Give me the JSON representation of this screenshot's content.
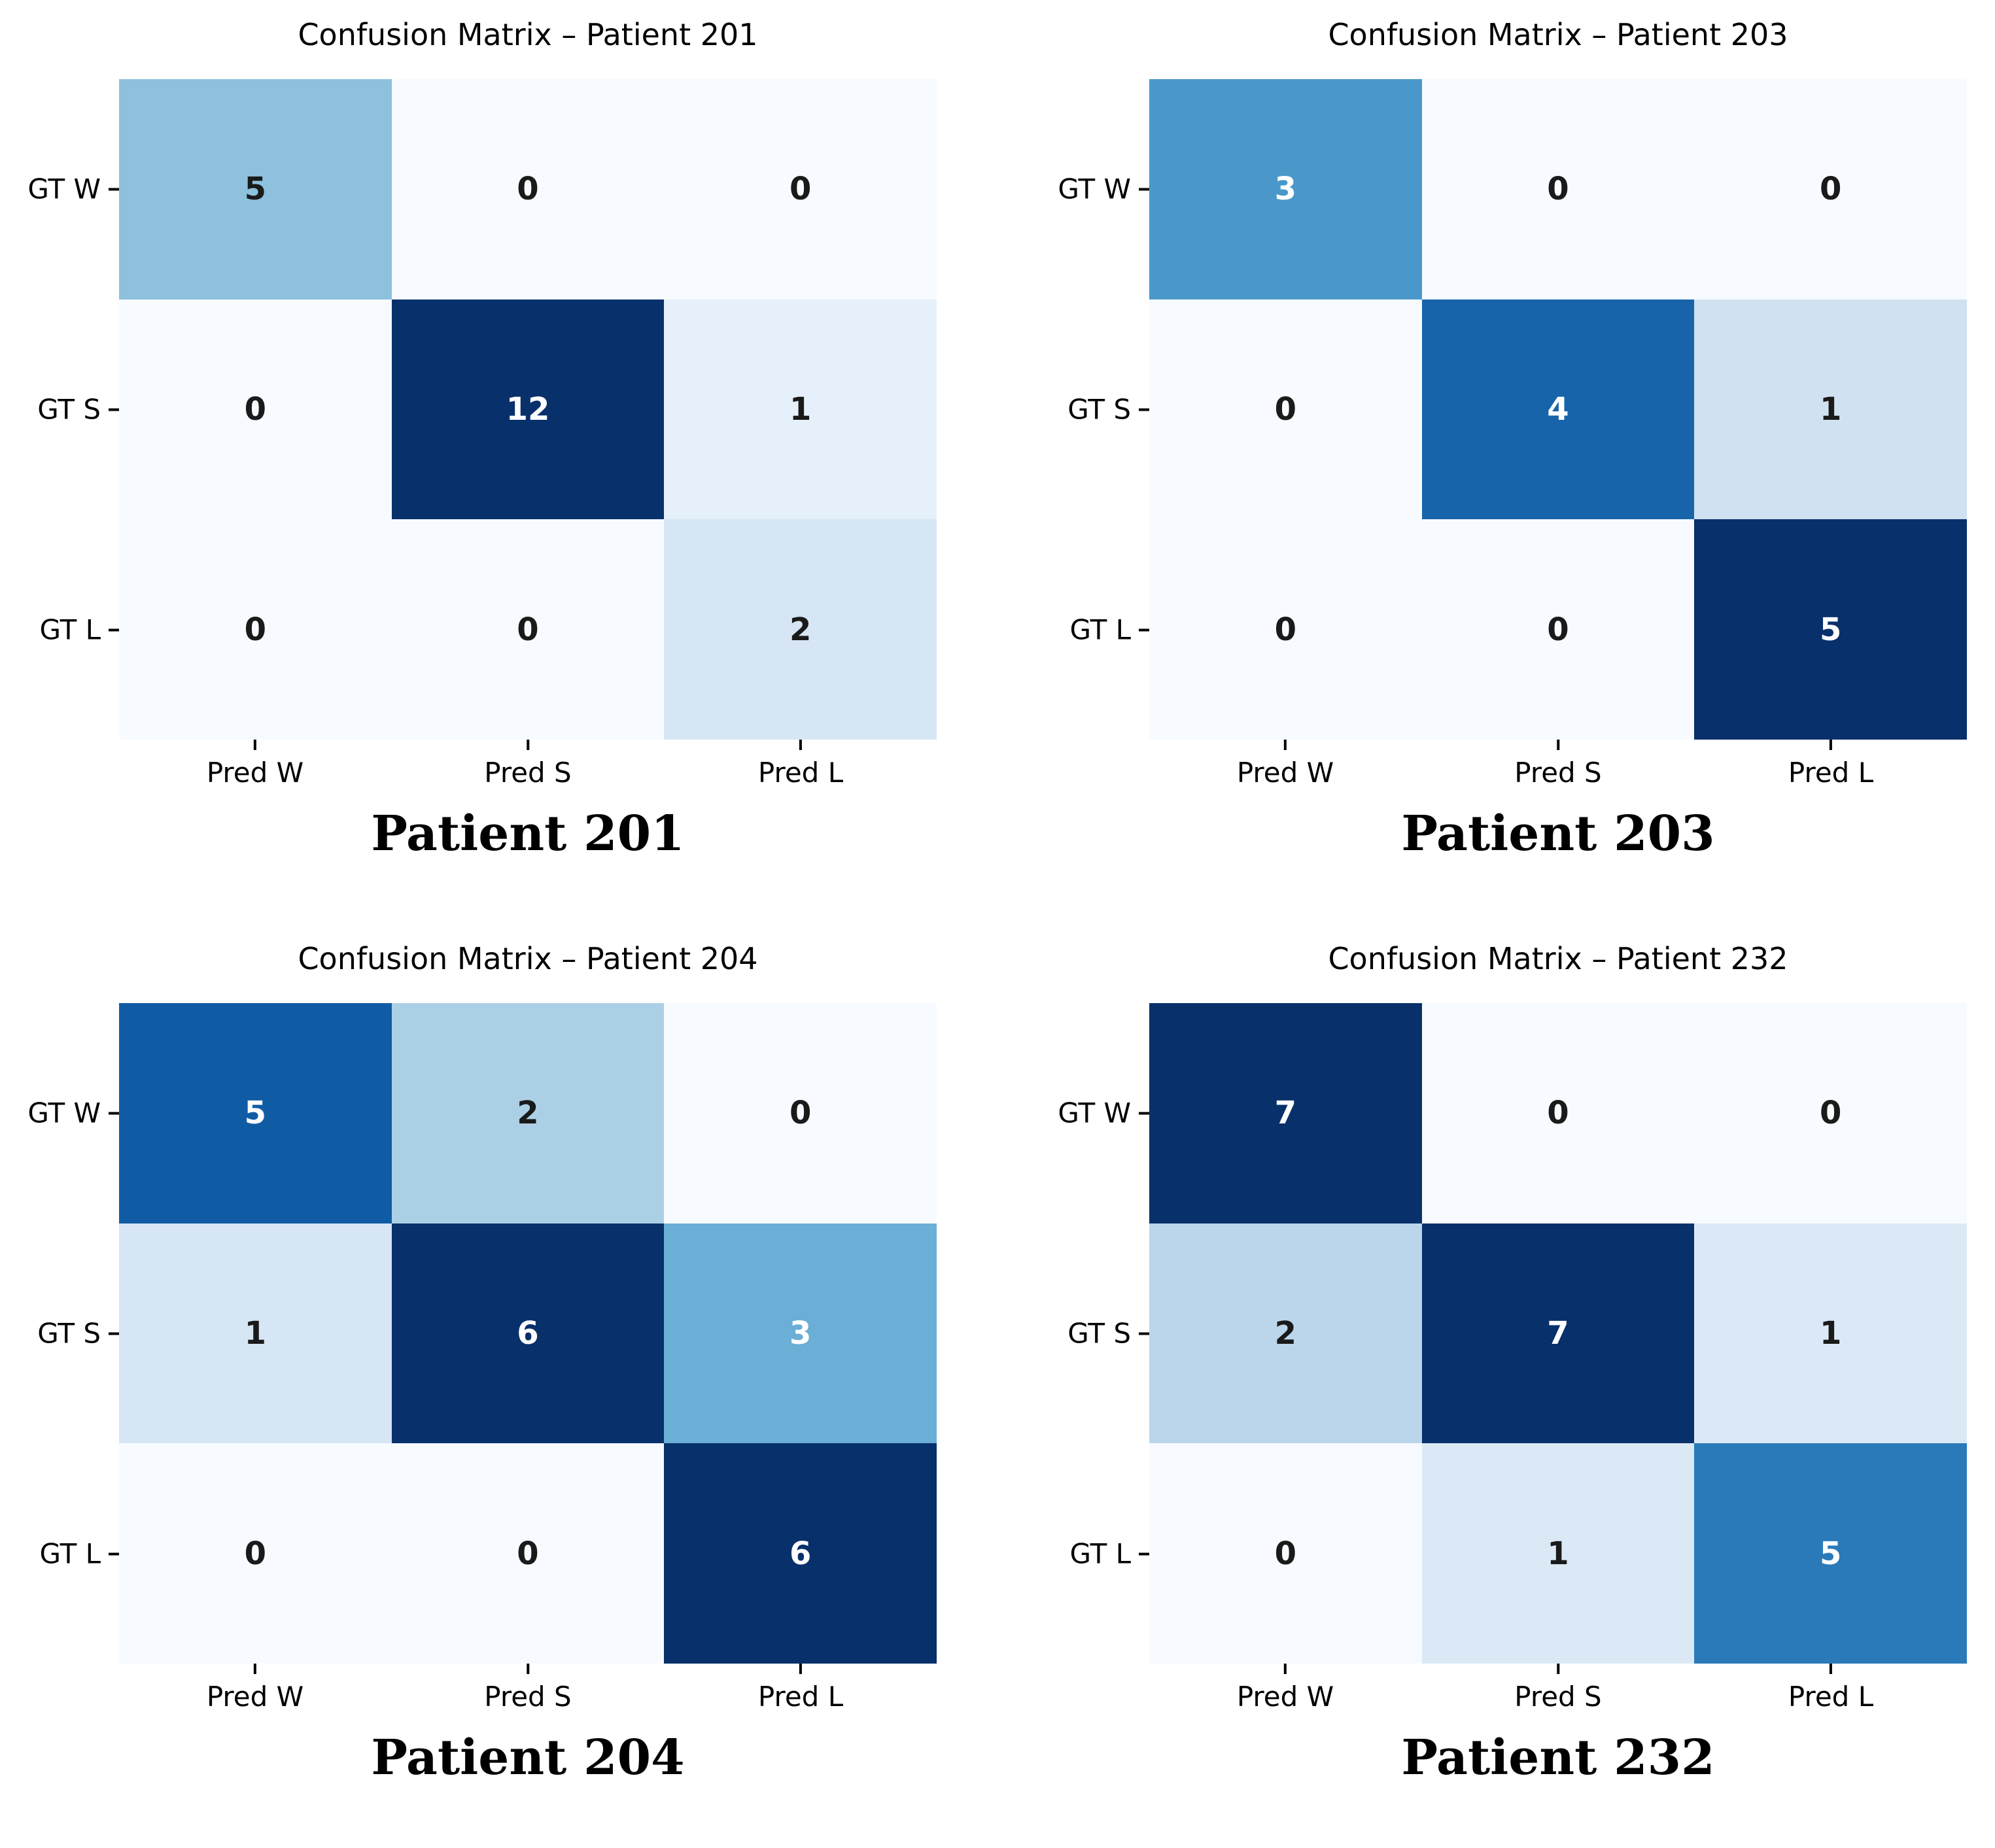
{
  "figure": {
    "background": "#ffffff",
    "axis_text_color": "#000000",
    "annotation_dark": "#1a1a1a",
    "annotation_light": "#ffffff",
    "colormap_name": "Blues",
    "colormap_stops": [
      0,
      0.125,
      0.25,
      0.375,
      0.5,
      0.625,
      0.75,
      0.875,
      1
    ],
    "colormap_colors": [
      "#f7fbff",
      "#deebf7",
      "#c6dbef",
      "#9ecae1",
      "#6baed6",
      "#4292c6",
      "#2171b5",
      "#08519c",
      "#08306b"
    ]
  },
  "chart_data": [
    {
      "type": "heatmap",
      "title": "Confusion Matrix – Patient 201",
      "caption": "Patient 201",
      "row_labels": [
        "GT W",
        "GT S",
        "GT L"
      ],
      "col_labels": [
        "Pred W",
        "Pred S",
        "Pred L"
      ],
      "values": [
        [
          5,
          0,
          0
        ],
        [
          0,
          12,
          1
        ],
        [
          0,
          0,
          2
        ]
      ],
      "vmin": 0,
      "vmax": 12,
      "annotated": true,
      "grid": false,
      "legend": "none"
    },
    {
      "type": "heatmap",
      "title": "Confusion Matrix – Patient 203",
      "caption": "Patient 203",
      "row_labels": [
        "GT W",
        "GT S",
        "GT L"
      ],
      "col_labels": [
        "Pred W",
        "Pred S",
        "Pred L"
      ],
      "values": [
        [
          3,
          0,
          0
        ],
        [
          0,
          4,
          1
        ],
        [
          0,
          0,
          5
        ]
      ],
      "vmin": 0,
      "vmax": 5,
      "annotated": true,
      "grid": false,
      "legend": "none"
    },
    {
      "type": "heatmap",
      "title": "Confusion Matrix – Patient 204",
      "caption": "Patient 204",
      "row_labels": [
        "GT W",
        "GT S",
        "GT L"
      ],
      "col_labels": [
        "Pred W",
        "Pred S",
        "Pred L"
      ],
      "values": [
        [
          5,
          2,
          0
        ],
        [
          1,
          6,
          3
        ],
        [
          0,
          0,
          6
        ]
      ],
      "vmin": 0,
      "vmax": 6,
      "annotated": true,
      "grid": false,
      "legend": "none"
    },
    {
      "type": "heatmap",
      "title": "Confusion Matrix – Patient 232",
      "caption": "Patient 232",
      "row_labels": [
        "GT W",
        "GT S",
        "GT L"
      ],
      "col_labels": [
        "Pred W",
        "Pred S",
        "Pred L"
      ],
      "values": [
        [
          7,
          0,
          0
        ],
        [
          2,
          7,
          1
        ],
        [
          0,
          1,
          5
        ]
      ],
      "vmin": 0,
      "vmax": 7,
      "annotated": true,
      "grid": false,
      "legend": "none"
    }
  ]
}
